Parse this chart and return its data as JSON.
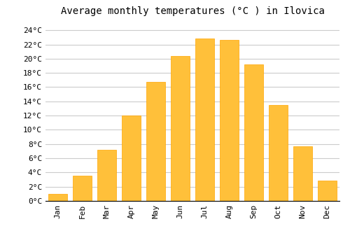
{
  "title": "Average monthly temperatures (°C ) in Ilovica",
  "months": [
    "Jan",
    "Feb",
    "Mar",
    "Apr",
    "May",
    "Jun",
    "Jul",
    "Aug",
    "Sep",
    "Oct",
    "Nov",
    "Dec"
  ],
  "values": [
    1.0,
    3.5,
    7.2,
    12.0,
    16.7,
    20.4,
    22.8,
    22.6,
    19.2,
    13.5,
    7.7,
    2.9
  ],
  "bar_color": "#FFC03A",
  "bar_edge_color": "#FFA500",
  "background_color": "#FFFFFF",
  "grid_color": "#CCCCCC",
  "yticks": [
    0,
    2,
    4,
    6,
    8,
    10,
    12,
    14,
    16,
    18,
    20,
    22,
    24
  ],
  "ylim": [
    0,
    25.5
  ],
  "title_fontsize": 10,
  "tick_fontsize": 8,
  "font_family": "monospace",
  "bar_width": 0.75
}
